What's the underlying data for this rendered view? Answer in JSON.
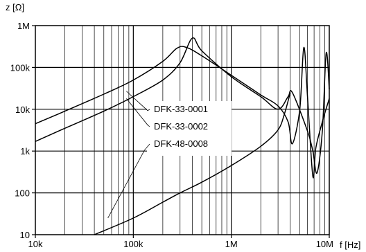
{
  "chart_data": {
    "type": "line",
    "ylabel": "z [Ω]",
    "xlabel": "f [Hz]",
    "x_scale": "log",
    "y_scale": "log",
    "xlim": [
      10000,
      10000000
    ],
    "ylim": [
      10,
      1000000
    ],
    "grid": true,
    "x_ticks": [
      {
        "value": 10000,
        "label": "10k"
      },
      {
        "value": 100000,
        "label": "100k"
      },
      {
        "value": 1000000,
        "label": "1M"
      },
      {
        "value": 10000000,
        "label": "10M"
      }
    ],
    "y_ticks": [
      {
        "value": 10,
        "label": "10"
      },
      {
        "value": 100,
        "label": "100"
      },
      {
        "value": 1000,
        "label": "1k"
      },
      {
        "value": 10000,
        "label": "10k"
      },
      {
        "value": 100000,
        "label": "100k"
      },
      {
        "value": 1000000,
        "label": "1M"
      }
    ],
    "series": [
      {
        "name": "DFK-33-0001",
        "x": [
          10000,
          20000,
          50000,
          100000,
          200000,
          280000,
          350000,
          500000,
          1000000,
          2000000,
          3000000,
          3800000,
          4200000,
          5000000,
          5500000,
          6000000,
          6800000,
          7300000,
          8500000,
          10000000
        ],
        "y": [
          4500,
          9000,
          23000,
          50000,
          140000,
          290000,
          300000,
          190000,
          65000,
          22000,
          12000,
          5000,
          1500,
          10000,
          300000,
          20000,
          250,
          1200,
          5000,
          18000
        ]
      },
      {
        "name": "DFK-33-0002",
        "x": [
          10000,
          20000,
          50000,
          100000,
          200000,
          300000,
          400000,
          500000,
          1000000,
          2000000,
          3000000,
          3800000,
          4200000,
          6000000,
          6800000,
          7500000,
          8500000,
          9300000,
          10000000
        ],
        "y": [
          1700,
          3500,
          9000,
          20000,
          50000,
          130000,
          500000,
          250000,
          60000,
          20000,
          10000,
          20000,
          25000,
          3000,
          1000,
          300,
          3000,
          220000,
          30000
        ]
      },
      {
        "name": "DFK-48-0008",
        "x": [
          40000,
          100000,
          200000,
          300000,
          500000,
          1000000,
          2000000,
          3000000,
          3500000,
          4000000
        ],
        "y": [
          10,
          25,
          60,
          100,
          180,
          450,
          1300,
          3200,
          8000,
          25000
        ]
      }
    ],
    "legend": {
      "placement": "center",
      "entries": [
        "DFK-33-0001",
        "DFK-33-0002",
        "DFK-48-0008"
      ]
    }
  }
}
